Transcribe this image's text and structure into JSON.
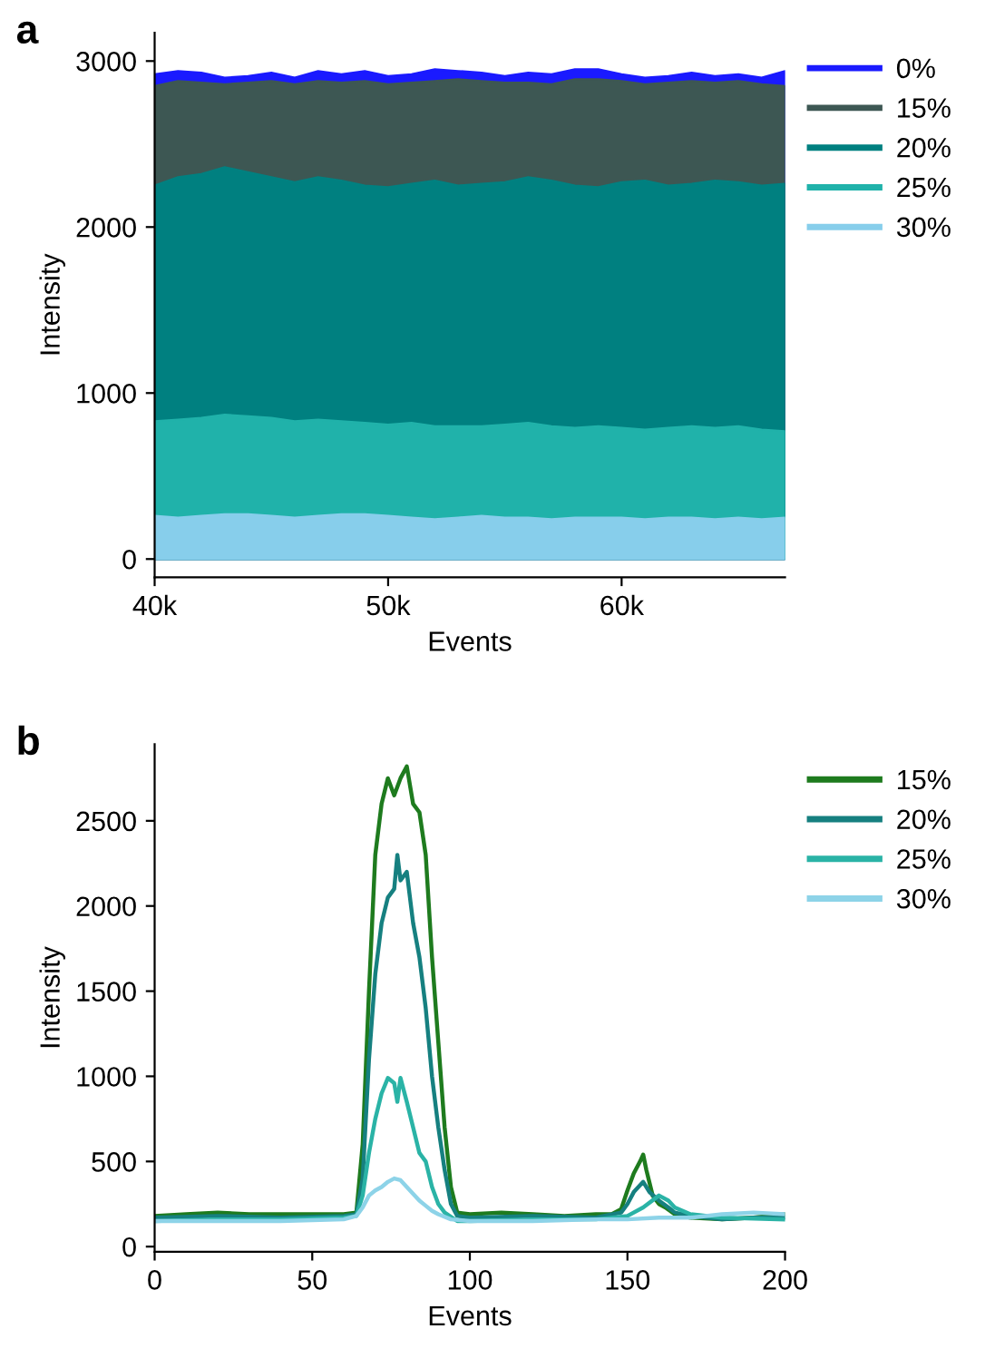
{
  "chart_data": [
    {
      "type": "area",
      "title": "a",
      "xlabel": "Events",
      "ylabel": "Intensity",
      "legend": "right",
      "grid": false,
      "x": [
        40000,
        41000,
        42000,
        43000,
        44000,
        45000,
        46000,
        47000,
        48000,
        49000,
        50000,
        51000,
        52000,
        53000,
        54000,
        55000,
        56000,
        57000,
        58000,
        59000,
        60000,
        61000,
        62000,
        63000,
        64000,
        65000,
        66000,
        67000
      ],
      "xlim": [
        40000,
        67000
      ],
      "xticks": [
        {
          "value": 40000,
          "label": "40k"
        },
        {
          "value": 50000,
          "label": "50k"
        },
        {
          "value": 60000,
          "label": "60k"
        }
      ],
      "ylim": [
        -110,
        3170
      ],
      "yticks": [
        0,
        1000,
        2000,
        3000
      ],
      "series": [
        {
          "name": "0%",
          "color": "#1a1aff",
          "values": [
            2920,
            2940,
            2930,
            2900,
            2910,
            2930,
            2900,
            2940,
            2920,
            2940,
            2910,
            2920,
            2950,
            2940,
            2930,
            2910,
            2930,
            2920,
            2950,
            2950,
            2920,
            2900,
            2910,
            2930,
            2910,
            2920,
            2900,
            2940
          ]
        },
        {
          "name": "15%",
          "color": "#3d5753",
          "values": [
            2850,
            2880,
            2870,
            2860,
            2870,
            2880,
            2860,
            2880,
            2870,
            2880,
            2860,
            2870,
            2880,
            2890,
            2880,
            2870,
            2870,
            2860,
            2890,
            2890,
            2880,
            2860,
            2870,
            2880,
            2870,
            2880,
            2860,
            2850
          ]
        },
        {
          "name": "20%",
          "color": "#008080",
          "values": [
            2250,
            2300,
            2320,
            2360,
            2330,
            2300,
            2270,
            2300,
            2280,
            2250,
            2240,
            2260,
            2280,
            2250,
            2260,
            2270,
            2300,
            2280,
            2250,
            2240,
            2270,
            2280,
            2250,
            2260,
            2280,
            2270,
            2250,
            2260
          ]
        },
        {
          "name": "25%",
          "color": "#20b2aa",
          "values": [
            830,
            840,
            850,
            870,
            860,
            850,
            830,
            840,
            830,
            820,
            810,
            820,
            800,
            800,
            800,
            810,
            820,
            800,
            790,
            800,
            790,
            780,
            790,
            800,
            790,
            800,
            780,
            770
          ]
        },
        {
          "name": "30%",
          "color": "#87ceeb",
          "values": [
            260,
            250,
            260,
            270,
            270,
            260,
            250,
            260,
            270,
            270,
            260,
            250,
            240,
            250,
            260,
            250,
            250,
            240,
            250,
            250,
            250,
            240,
            250,
            250,
            240,
            250,
            240,
            250
          ]
        }
      ]
    },
    {
      "type": "line",
      "title": "b",
      "xlabel": "Events",
      "ylabel": "Intensity",
      "legend": "right",
      "grid": false,
      "xlim": [
        0,
        200
      ],
      "xticks": [
        0,
        50,
        100,
        150,
        200
      ],
      "ylim": [
        -30,
        2950
      ],
      "yticks": [
        0,
        500,
        1000,
        1500,
        2000,
        2500
      ],
      "series": [
        {
          "name": "15%",
          "color": "#1e7b1e",
          "x": [
            0,
            10,
            20,
            30,
            40,
            50,
            60,
            64,
            66,
            68,
            70,
            72,
            74,
            76,
            78,
            80,
            82,
            84,
            86,
            88,
            90,
            92,
            94,
            96,
            100,
            110,
            120,
            130,
            140,
            145,
            148,
            150,
            152,
            154,
            155,
            156,
            158,
            160,
            162,
            165,
            170,
            180,
            190,
            200
          ],
          "values": [
            180,
            190,
            200,
            190,
            190,
            190,
            190,
            200,
            600,
            1500,
            2300,
            2600,
            2750,
            2650,
            2750,
            2820,
            2600,
            2550,
            2300,
            1700,
            1200,
            700,
            350,
            200,
            190,
            200,
            190,
            180,
            190,
            190,
            220,
            330,
            430,
            500,
            540,
            450,
            300,
            250,
            230,
            190,
            170,
            160,
            170,
            190
          ]
        },
        {
          "name": "20%",
          "color": "#168080",
          "x": [
            0,
            20,
            40,
            60,
            64,
            66,
            68,
            70,
            72,
            74,
            76,
            77,
            78,
            80,
            82,
            84,
            86,
            88,
            90,
            92,
            94,
            96,
            100,
            120,
            140,
            148,
            150,
            152,
            155,
            157,
            160,
            163,
            165,
            170,
            180,
            190,
            200
          ],
          "values": [
            170,
            180,
            170,
            180,
            190,
            400,
            1100,
            1600,
            1900,
            2050,
            2100,
            2300,
            2150,
            2200,
            1900,
            1700,
            1400,
            1000,
            700,
            450,
            250,
            180,
            170,
            180,
            170,
            200,
            250,
            320,
            380,
            320,
            270,
            230,
            200,
            180,
            160,
            170,
            170
          ]
        },
        {
          "name": "25%",
          "color": "#2ab3a6",
          "x": [
            0,
            20,
            40,
            60,
            64,
            66,
            68,
            70,
            72,
            74,
            76,
            77,
            78,
            80,
            82,
            84,
            86,
            88,
            90,
            92,
            96,
            100,
            120,
            140,
            150,
            155,
            160,
            163,
            165,
            170,
            180,
            200
          ],
          "values": [
            150,
            160,
            160,
            170,
            180,
            300,
            550,
            750,
            900,
            990,
            960,
            850,
            990,
            850,
            700,
            550,
            500,
            350,
            250,
            200,
            150,
            150,
            160,
            160,
            180,
            230,
            300,
            270,
            230,
            190,
            170,
            160
          ]
        },
        {
          "name": "30%",
          "color": "#8dd3e8",
          "x": [
            0,
            20,
            40,
            60,
            64,
            66,
            68,
            70,
            72,
            74,
            76,
            78,
            80,
            82,
            84,
            86,
            88,
            90,
            94,
            100,
            120,
            140,
            150,
            160,
            170,
            180,
            190,
            200
          ],
          "values": [
            150,
            150,
            150,
            160,
            180,
            230,
            300,
            330,
            350,
            380,
            400,
            390,
            350,
            310,
            270,
            240,
            210,
            190,
            160,
            150,
            150,
            160,
            160,
            170,
            170,
            190,
            200,
            190
          ]
        }
      ]
    }
  ]
}
